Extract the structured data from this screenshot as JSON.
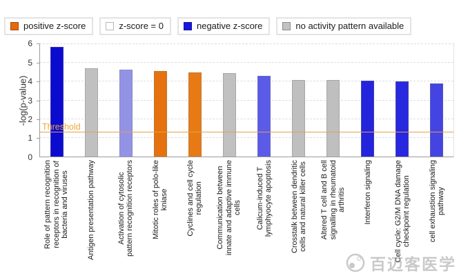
{
  "legend": {
    "items": [
      {
        "label": "positive z-score",
        "color": "#e5690e"
      },
      {
        "label": "z-score = 0",
        "color": "#ffffff"
      },
      {
        "label": "negative z-score",
        "color": "#1818dd"
      },
      {
        "label": "no activity pattern available",
        "color": "#c2c2c2"
      }
    ]
  },
  "y_axis": {
    "title": "-log(p-value)",
    "ticks": [
      "6",
      "5",
      "4",
      "3",
      "2",
      "1",
      "0"
    ]
  },
  "threshold_label": "Threshold",
  "watermark_text": "百迈客医学",
  "chart_data": {
    "type": "bar",
    "title": "",
    "xlabel": "",
    "ylabel": "-log(p-value)",
    "ylim": [
      0,
      6
    ],
    "grid": "horizontal-dashed",
    "threshold": 1.3,
    "legend_position": "top-left",
    "legend": [
      "positive z-score",
      "z-score = 0",
      "negative z-score",
      "no activity pattern available"
    ],
    "categories": [
      "Role of pattern recognition\nreceptors in recognition of\nbacteria and viruses",
      "Antigen presentation pathway",
      "Activation of cytosolic\npattern recognition receptors",
      "Mitotic roles of polo-like\nkniase",
      "Cyclines and cell cycle\nregulation",
      "Communication between\ninnate and adaptive immune\ncells",
      "Calicum-induced T\nlymphyocyte apoptosis",
      "Crosstalk between dendritic\ncells and natural killer cells",
      "Altered T cell and B cell\nsignalling in rheumatoid\narthritis",
      "Interferon signaling",
      "Cell cycle: G2/M DNA damage\ncheckpoint regulation",
      "cell exhaustion signaling\npathway"
    ],
    "values": [
      5.85,
      4.7,
      4.65,
      4.55,
      4.5,
      4.45,
      4.3,
      4.1,
      4.1,
      4.05,
      4.0,
      3.9
    ],
    "bar_colors": [
      "#0b0bd0",
      "#c0c0c0",
      "#9393e6",
      "#e5720e",
      "#e87a16",
      "#c0c0c0",
      "#5b5be8",
      "#bfbfbf",
      "#bfbfbf",
      "#2424dc",
      "#2828de",
      "#4444e2"
    ],
    "bar_color_meaning": [
      "negative z-score",
      "no activity pattern available",
      "negative z-score",
      "positive z-score",
      "positive z-score",
      "no activity pattern available",
      "negative z-score",
      "no activity pattern available",
      "no activity pattern available",
      "negative z-score",
      "negative z-score",
      "negative z-score"
    ]
  }
}
